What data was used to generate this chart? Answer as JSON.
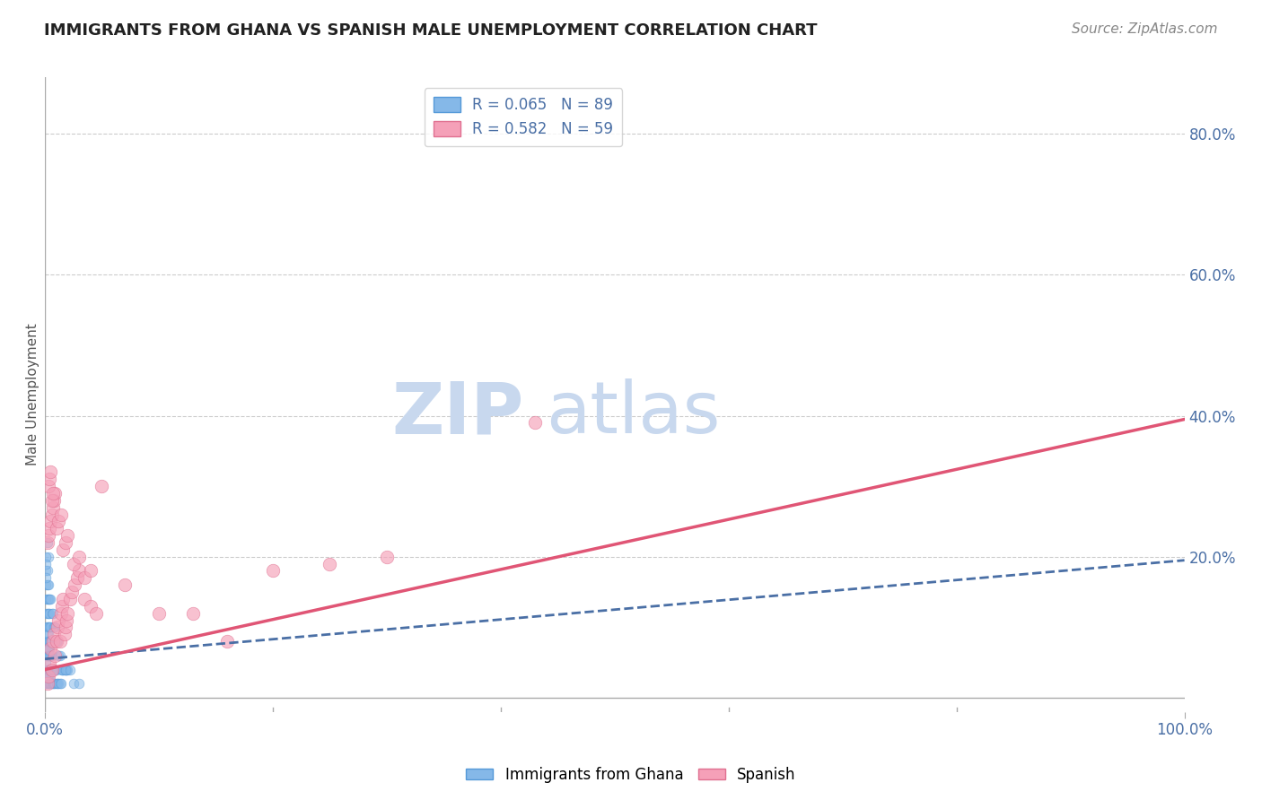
{
  "title": "IMMIGRANTS FROM GHANA VS SPANISH MALE UNEMPLOYMENT CORRELATION CHART",
  "source_text": "Source: ZipAtlas.com",
  "ylabel": "Male Unemployment",
  "xlim": [
    0.0,
    1.0
  ],
  "ylim": [
    -0.02,
    0.88
  ],
  "right_yticks": [
    0.2,
    0.4,
    0.6,
    0.8
  ],
  "right_yticklabels": [
    "20.0%",
    "40.0%",
    "60.0%",
    "80.0%"
  ],
  "xtick_positions": [
    0.0,
    1.0
  ],
  "xticklabels_left": "0.0%",
  "xticklabels_right": "100.0%",
  "axis_color": "#4a6fa5",
  "grid_color": "#cccccc",
  "background_color": "#ffffff",
  "watermark_zip": "ZIP",
  "watermark_atlas": "atlas",
  "watermark_color": "#c8d8ee",
  "ghana_color": "#85b8e8",
  "ghana_edge": "#5599d8",
  "ghana_alpha": 0.55,
  "ghana_size": 60,
  "spanish_color": "#f5a0b8",
  "spanish_edge": "#e07090",
  "spanish_alpha": 0.65,
  "spanish_size": 110,
  "ghana_trend_x": [
    0.0,
    1.0
  ],
  "ghana_trend_y": [
    0.055,
    0.195
  ],
  "spanish_trend_x": [
    0.0,
    1.0
  ],
  "spanish_trend_y": [
    0.04,
    0.395
  ],
  "ghana_x": [
    0.001,
    0.001,
    0.001,
    0.001,
    0.001,
    0.001,
    0.001,
    0.001,
    0.001,
    0.001,
    0.002,
    0.002,
    0.002,
    0.002,
    0.002,
    0.002,
    0.002,
    0.002,
    0.002,
    0.002,
    0.003,
    0.003,
    0.003,
    0.003,
    0.003,
    0.003,
    0.003,
    0.003,
    0.003,
    0.003,
    0.004,
    0.004,
    0.004,
    0.004,
    0.004,
    0.004,
    0.004,
    0.004,
    0.005,
    0.005,
    0.005,
    0.005,
    0.005,
    0.006,
    0.006,
    0.006,
    0.007,
    0.007,
    0.008,
    0.008,
    0.009,
    0.009,
    0.01,
    0.01,
    0.011,
    0.012,
    0.013,
    0.014,
    0.015,
    0.016,
    0.017,
    0.018,
    0.019,
    0.02,
    0.001,
    0.002,
    0.003,
    0.004,
    0.005,
    0.006,
    0.007,
    0.008,
    0.009,
    0.01,
    0.011,
    0.012,
    0.013,
    0.015,
    0.018,
    0.022,
    0.025,
    0.03,
    0.001,
    0.002,
    0.003,
    0.001,
    0.002,
    0.001,
    0.001
  ],
  "ghana_y": [
    0.02,
    0.04,
    0.06,
    0.08,
    0.1,
    0.12,
    0.14,
    0.07,
    0.03,
    0.05,
    0.02,
    0.04,
    0.06,
    0.08,
    0.1,
    0.12,
    0.14,
    0.07,
    0.03,
    0.09,
    0.02,
    0.04,
    0.06,
    0.08,
    0.1,
    0.12,
    0.14,
    0.07,
    0.03,
    0.09,
    0.02,
    0.04,
    0.06,
    0.08,
    0.1,
    0.12,
    0.07,
    0.03,
    0.02,
    0.04,
    0.06,
    0.08,
    0.1,
    0.02,
    0.04,
    0.06,
    0.02,
    0.04,
    0.02,
    0.04,
    0.02,
    0.04,
    0.02,
    0.04,
    0.02,
    0.02,
    0.02,
    0.02,
    0.04,
    0.04,
    0.04,
    0.04,
    0.04,
    0.04,
    0.16,
    0.16,
    0.16,
    0.14,
    0.14,
    0.12,
    0.12,
    0.1,
    0.1,
    0.08,
    0.08,
    0.06,
    0.06,
    0.04,
    0.04,
    0.04,
    0.02,
    0.02,
    0.18,
    0.18,
    0.2,
    0.2,
    0.22,
    0.19,
    0.17
  ],
  "spanish_x": [
    0.002,
    0.003,
    0.004,
    0.005,
    0.006,
    0.007,
    0.008,
    0.009,
    0.01,
    0.011,
    0.012,
    0.013,
    0.014,
    0.015,
    0.016,
    0.017,
    0.018,
    0.019,
    0.02,
    0.022,
    0.024,
    0.026,
    0.028,
    0.03,
    0.035,
    0.04,
    0.045,
    0.002,
    0.003,
    0.004,
    0.005,
    0.006,
    0.007,
    0.008,
    0.009,
    0.01,
    0.012,
    0.014,
    0.016,
    0.018,
    0.02,
    0.025,
    0.03,
    0.035,
    0.04,
    0.003,
    0.004,
    0.005,
    0.006,
    0.007,
    0.05,
    0.07,
    0.1,
    0.13,
    0.16,
    0.2,
    0.25,
    0.3,
    0.43
  ],
  "spanish_y": [
    0.02,
    0.03,
    0.05,
    0.07,
    0.04,
    0.08,
    0.09,
    0.06,
    0.08,
    0.1,
    0.11,
    0.08,
    0.12,
    0.13,
    0.14,
    0.09,
    0.1,
    0.11,
    0.12,
    0.14,
    0.15,
    0.16,
    0.17,
    0.18,
    0.14,
    0.13,
    0.12,
    0.22,
    0.23,
    0.24,
    0.25,
    0.26,
    0.27,
    0.28,
    0.29,
    0.24,
    0.25,
    0.26,
    0.21,
    0.22,
    0.23,
    0.19,
    0.2,
    0.17,
    0.18,
    0.3,
    0.31,
    0.32,
    0.28,
    0.29,
    0.3,
    0.16,
    0.12,
    0.12,
    0.08,
    0.18,
    0.19,
    0.2,
    0.39
  ],
  "legend_r1": "R = 0.065   N = 89",
  "legend_r2": "R = 0.582   N = 59",
  "legend_label1": "Immigrants from Ghana",
  "legend_label2": "Spanish",
  "title_fontsize": 13,
  "source_fontsize": 11,
  "label_fontsize": 11,
  "tick_fontsize": 12
}
